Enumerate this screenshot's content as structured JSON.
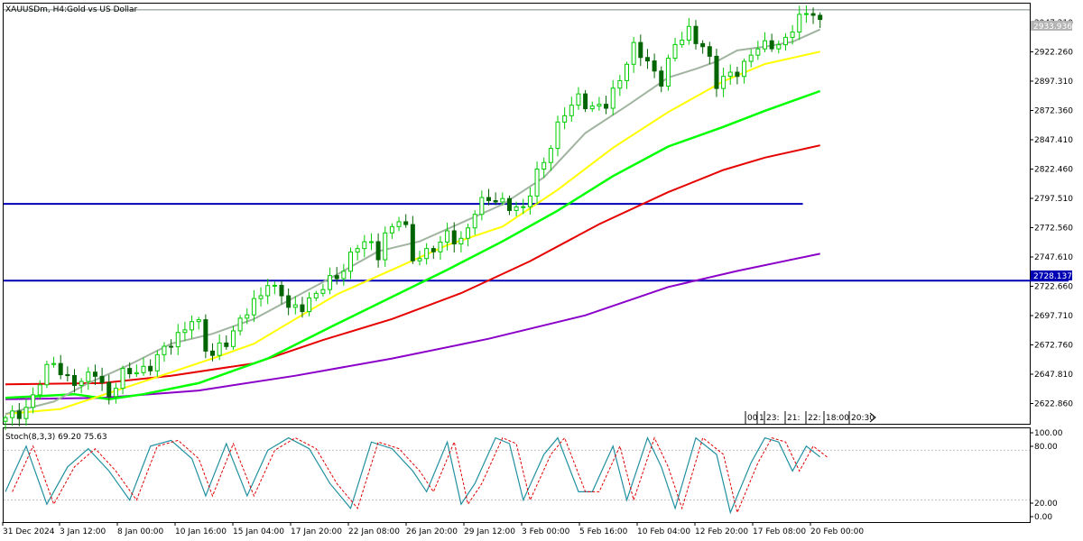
{
  "header": {
    "symbol": "XAUUSDm, H4:",
    "description": "Gold vs US Dollar"
  },
  "colors": {
    "bull": "#00cc00",
    "bear": "#006400",
    "sma_gray": "#a0b4a0",
    "sma_yellow": "#ffff00",
    "sma_green": "#00ff00",
    "sma_red": "#e60000",
    "sma_purple": "#8b00c8",
    "hline": "#0000b4",
    "stoch_main": "#2090a0",
    "stoch_signal": "#e00000",
    "price_tag": "#b4b4b4"
  },
  "price_axis": {
    "labels": [
      "2947.210",
      "2922.260",
      "2897.310",
      "2872.360",
      "2847.410",
      "2822.460",
      "2797.510",
      "2772.560",
      "2747.610",
      "2722.660",
      "2697.710",
      "2672.760",
      "2647.810",
      "2622.860"
    ]
  },
  "price_tags": {
    "current": "2933.936",
    "level": "2728.137"
  },
  "stoch": {
    "label": "Stoch(8,3,3) 69.20 75.63",
    "levels": [
      "100.00",
      "80.00",
      "20.00",
      "0.00"
    ]
  },
  "time_axis": {
    "labels": [
      "31 Dec 2024",
      "3 Jan 12:00",
      "8 Jan 00:00",
      "10 Jan 16:00",
      "15 Jan 04:00",
      "17 Jan 20:00",
      "22 Jan 08:00",
      "26 Jan 20:00",
      "29 Jan 12:00",
      "3 Feb 00:00",
      "5 Feb 16:00",
      "10 Feb 04:00",
      "12 Feb 20:00",
      "17 Feb 08:00",
      "20 Feb 00:00"
    ]
  },
  "session_marks": [
    "00",
    "1",
    "23:",
    "21:",
    "22:",
    "18:00",
    "20:30"
  ],
  "chart_data": {
    "type": "candlestick",
    "symbol": "XAUUSDm",
    "timeframe": "H4",
    "ylim": [
      2612,
      2953
    ],
    "close_path": [
      [
        0,
        2614
      ],
      [
        3,
        2626
      ],
      [
        5,
        2645
      ],
      [
        7,
        2662
      ],
      [
        9,
        2650
      ],
      [
        11,
        2643
      ],
      [
        13,
        2655
      ],
      [
        15,
        2636
      ],
      [
        17,
        2650
      ],
      [
        19,
        2656
      ],
      [
        21,
        2660
      ],
      [
        23,
        2670
      ],
      [
        25,
        2685
      ],
      [
        27,
        2698
      ],
      [
        28,
        2690
      ],
      [
        29,
        2671
      ],
      [
        30,
        2668
      ],
      [
        31,
        2677
      ],
      [
        33,
        2685
      ],
      [
        35,
        2702
      ],
      [
        37,
        2720
      ],
      [
        38,
        2728
      ],
      [
        39,
        2719
      ],
      [
        40,
        2716
      ],
      [
        41,
        2705
      ],
      [
        43,
        2710
      ],
      [
        45,
        2715
      ],
      [
        47,
        2728
      ],
      [
        49,
        2740
      ],
      [
        51,
        2755
      ],
      [
        53,
        2758
      ],
      [
        54,
        2752
      ],
      [
        55,
        2766
      ],
      [
        57,
        2776
      ],
      [
        58,
        2768
      ],
      [
        59,
        2748
      ],
      [
        61,
        2752
      ],
      [
        63,
        2755
      ],
      [
        64,
        2766
      ],
      [
        66,
        2762
      ],
      [
        68,
        2782
      ],
      [
        70,
        2796
      ],
      [
        72,
        2794
      ],
      [
        74,
        2783
      ],
      [
        75,
        2785
      ],
      [
        77,
        2818
      ],
      [
        79,
        2836
      ],
      [
        81,
        2864
      ],
      [
        83,
        2880
      ],
      [
        85,
        2865
      ],
      [
        87,
        2871
      ],
      [
        89,
        2895
      ],
      [
        91,
        2915
      ],
      [
        93,
        2906
      ],
      [
        95,
        2892
      ],
      [
        97,
        2917
      ],
      [
        99,
        2932
      ],
      [
        101,
        2920
      ],
      [
        102,
        2905
      ],
      [
        103,
        2885
      ],
      [
        105,
        2898
      ],
      [
        107,
        2903
      ],
      [
        109,
        2916
      ],
      [
        111,
        2922
      ],
      [
        113,
        2922
      ],
      [
        115,
        2940
      ],
      [
        117,
        2950
      ],
      [
        118,
        2938
      ]
    ],
    "sma_gray": [
      [
        0,
        2620
      ],
      [
        7,
        2630
      ],
      [
        12,
        2645
      ],
      [
        18,
        2660
      ],
      [
        24,
        2677
      ],
      [
        30,
        2685
      ],
      [
        36,
        2697
      ],
      [
        42,
        2715
      ],
      [
        48,
        2733
      ],
      [
        54,
        2752
      ],
      [
        60,
        2760
      ],
      [
        66,
        2775
      ],
      [
        72,
        2790
      ],
      [
        78,
        2812
      ],
      [
        84,
        2848
      ],
      [
        90,
        2870
      ],
      [
        96,
        2893
      ],
      [
        100,
        2900
      ],
      [
        103,
        2906
      ],
      [
        106,
        2915
      ],
      [
        110,
        2918
      ],
      [
        114,
        2922
      ],
      [
        118,
        2932
      ]
    ],
    "sma_yellow": [
      [
        0,
        2620
      ],
      [
        8,
        2624
      ],
      [
        15,
        2637
      ],
      [
        22,
        2650
      ],
      [
        30,
        2665
      ],
      [
        36,
        2677
      ],
      [
        42,
        2697
      ],
      [
        48,
        2717
      ],
      [
        56,
        2737
      ],
      [
        64,
        2757
      ],
      [
        72,
        2772
      ],
      [
        80,
        2802
      ],
      [
        88,
        2836
      ],
      [
        96,
        2865
      ],
      [
        104,
        2890
      ],
      [
        110,
        2904
      ],
      [
        118,
        2914
      ]
    ],
    "sma_green": [
      [
        0,
        2633
      ],
      [
        10,
        2636
      ],
      [
        15,
        2632
      ],
      [
        20,
        2636
      ],
      [
        28,
        2645
      ],
      [
        38,
        2665
      ],
      [
        48,
        2693
      ],
      [
        56,
        2715
      ],
      [
        64,
        2737
      ],
      [
        72,
        2760
      ],
      [
        80,
        2785
      ],
      [
        88,
        2813
      ],
      [
        96,
        2837
      ],
      [
        104,
        2853
      ],
      [
        110,
        2866
      ],
      [
        118,
        2882
      ]
    ],
    "sma_red": [
      [
        0,
        2644
      ],
      [
        14,
        2645
      ],
      [
        24,
        2651
      ],
      [
        36,
        2661
      ],
      [
        46,
        2680
      ],
      [
        56,
        2697
      ],
      [
        66,
        2718
      ],
      [
        76,
        2744
      ],
      [
        86,
        2774
      ],
      [
        96,
        2800
      ],
      [
        104,
        2818
      ],
      [
        110,
        2828
      ],
      [
        118,
        2838
      ]
    ],
    "sma_purple": [
      [
        0,
        2632
      ],
      [
        14,
        2633
      ],
      [
        28,
        2639
      ],
      [
        42,
        2651
      ],
      [
        56,
        2665
      ],
      [
        70,
        2681
      ],
      [
        84,
        2700
      ],
      [
        96,
        2723
      ],
      [
        106,
        2736
      ],
      [
        118,
        2750
      ]
    ],
    "hlines": [
      {
        "value": 2790.5,
        "x_end": 115.5
      },
      {
        "value": 2728.137,
        "x_end": 154
      }
    ],
    "stochastic": {
      "main": [
        [
          0,
          30
        ],
        [
          3,
          85
        ],
        [
          6,
          15
        ],
        [
          9,
          60
        ],
        [
          12,
          82
        ],
        [
          15,
          55
        ],
        [
          18,
          20
        ],
        [
          21,
          85
        ],
        [
          24,
          92
        ],
        [
          27,
          70
        ],
        [
          29,
          25
        ],
        [
          32,
          88
        ],
        [
          35,
          25
        ],
        [
          38,
          80
        ],
        [
          41,
          95
        ],
        [
          44,
          82
        ],
        [
          47,
          40
        ],
        [
          50,
          10
        ],
        [
          53,
          90
        ],
        [
          56,
          82
        ],
        [
          59,
          55
        ],
        [
          61,
          30
        ],
        [
          64,
          90
        ],
        [
          66,
          15
        ],
        [
          68,
          40
        ],
        [
          71,
          95
        ],
        [
          73,
          88
        ],
        [
          75,
          20
        ],
        [
          78,
          75
        ],
        [
          80,
          95
        ],
        [
          83,
          30
        ],
        [
          85,
          30
        ],
        [
          88,
          85
        ],
        [
          90,
          20
        ],
        [
          93,
          95
        ],
        [
          95,
          60
        ],
        [
          97,
          10
        ],
        [
          100,
          95
        ],
        [
          103,
          75
        ],
        [
          105,
          5
        ],
        [
          108,
          65
        ],
        [
          110,
          95
        ],
        [
          112,
          90
        ],
        [
          114,
          55
        ],
        [
          116,
          85
        ],
        [
          118,
          72
        ]
      ],
      "signal_lag": 1.0,
      "ylim": [
        0,
        100
      ],
      "levels": [
        80,
        20
      ]
    }
  }
}
